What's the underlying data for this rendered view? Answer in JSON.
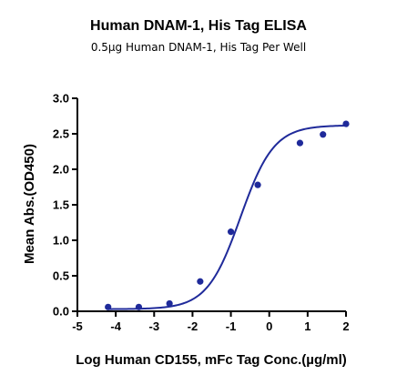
{
  "chart_data": {
    "type": "scatter",
    "title": "Human DNAM-1, His Tag ELISA",
    "subtitle": "0.5µg Human DNAM-1, His Tag Per Well",
    "xlabel": "Log Human CD155, mFc Tag Conc.(µg/ml)",
    "ylabel": "Mean Abs.(OD450)",
    "xlim": [
      -5,
      2
    ],
    "ylim": [
      0.0,
      3.0
    ],
    "xticks": [
      "-5",
      "-4",
      "-3",
      "-2",
      "-1",
      "0",
      "1",
      "2"
    ],
    "yticks": [
      "0.0",
      "0.5",
      "1.0",
      "1.5",
      "2.0",
      "2.5",
      "3.0"
    ],
    "grid": false,
    "colors": {
      "points": "#1f2a9a",
      "curve": "#1f2a9a",
      "axis": "#000000"
    },
    "series": [
      {
        "points": [
          {
            "x": -4.2,
            "y": 0.06
          },
          {
            "x": -3.4,
            "y": 0.06
          },
          {
            "x": -2.6,
            "y": 0.11
          },
          {
            "x": -1.8,
            "y": 0.42
          },
          {
            "x": -1.0,
            "y": 1.12
          },
          {
            "x": -0.3,
            "y": 1.78
          },
          {
            "x": 0.8,
            "y": 2.37
          },
          {
            "x": 1.4,
            "y": 2.49
          },
          {
            "x": 2.0,
            "y": 2.64
          }
        ],
        "fit_curve": {
          "model": "4PL",
          "bottom": 0.03,
          "top": 2.62,
          "log_ec50": -0.75,
          "hill": 1.0,
          "x_range": [
            -4.2,
            2.0
          ]
        }
      }
    ]
  }
}
